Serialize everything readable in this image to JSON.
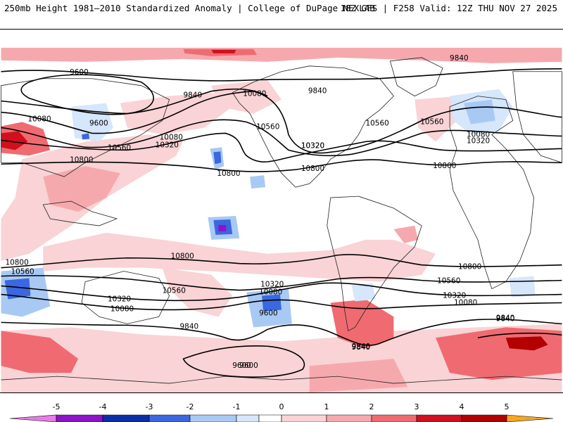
{
  "header": {
    "left": "250mb Height 1981–2010 Standardized Anomaly | College of DuPage NEXLAB",
    "right": "18Z GFS | F258 Valid: 12Z THU NOV 27 2025"
  },
  "colorbar": {
    "ticks": [
      "-5",
      "-4",
      "-3",
      "-2",
      "-1",
      "0",
      "1",
      "2",
      "3",
      "4",
      "5"
    ],
    "colors": {
      "m5": "#e87ce8",
      "m4": "#8f13c8",
      "m3": "#0b2fa8",
      "m2": "#3b67e0",
      "m1": "#a9c9f5",
      "m05": "#d6e6fb",
      "zero": "#ffffff",
      "p05": "#f9d3d5",
      "p1": "#f6a9ad",
      "p2": "#ef6b71",
      "p3": "#d0101e",
      "p4": "#b30000",
      "p5": "#f5a623"
    }
  },
  "contour_labels": [
    "9600",
    "9840",
    "10080",
    "10320",
    "10560",
    "10800",
    "9600",
    "10080",
    "10320",
    "10560",
    "10800",
    "9840",
    "10080",
    "10560",
    "10320",
    "10800",
    "9840",
    "10080",
    "10560",
    "10800",
    "10320",
    "10800",
    "10560",
    "10320",
    "10080",
    "9840",
    "9600",
    "10800",
    "10560",
    "10320",
    "10080",
    "9600",
    "9840",
    "9840",
    "9600",
    "10800",
    "10560",
    "10320",
    "10080",
    "9840",
    "9840"
  ]
}
